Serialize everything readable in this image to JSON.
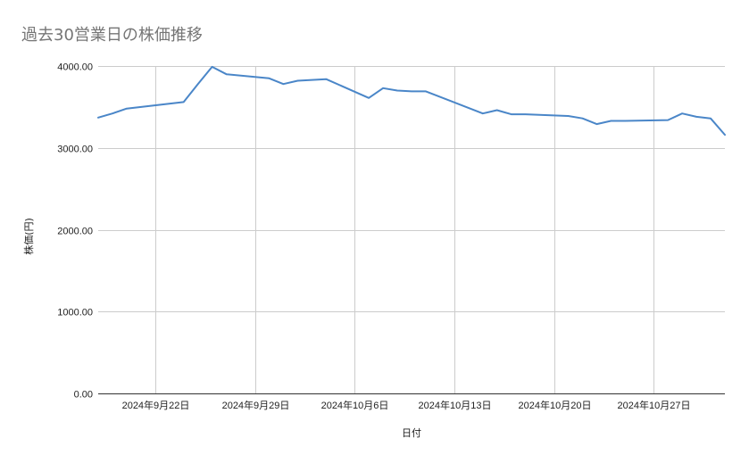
{
  "chart_data": {
    "type": "line",
    "title": "過去30営業日の株価推移",
    "xlabel": "日付",
    "ylabel": "株価(円)",
    "ylim": [
      0,
      4000
    ],
    "yticks": [
      0,
      1000,
      2000,
      3000,
      4000
    ],
    "ytick_labels": [
      "0.00",
      "1000.00",
      "2000.00",
      "3000.00",
      "4000.00"
    ],
    "xlim": [
      "2024-09-18",
      "2024-11-01"
    ],
    "xticks": [
      "2024-09-22",
      "2024-09-29",
      "2024-10-06",
      "2024-10-13",
      "2024-10-20",
      "2024-10-27"
    ],
    "xtick_labels": [
      "2024年9月22日",
      "2024年9月29日",
      "2024年10月6日",
      "2024年10月13日",
      "2024年10月20日",
      "2024年10月27日"
    ],
    "grid": true,
    "legend": "none",
    "color": "#4a86c8",
    "series": [
      {
        "x": [
          "2024-09-18",
          "2024-09-19",
          "2024-09-20",
          "2024-09-24",
          "2024-09-25",
          "2024-09-26",
          "2024-09-27",
          "2024-09-30",
          "2024-10-01",
          "2024-10-02",
          "2024-10-03",
          "2024-10-04",
          "2024-10-07",
          "2024-10-08",
          "2024-10-09",
          "2024-10-10",
          "2024-10-11",
          "2024-10-15",
          "2024-10-16",
          "2024-10-17",
          "2024-10-18",
          "2024-10-21",
          "2024-10-22",
          "2024-10-23",
          "2024-10-24",
          "2024-10-25",
          "2024-10-28",
          "2024-10-29",
          "2024-10-30",
          "2024-10-31",
          "2024-11-01"
        ],
        "values": [
          3370,
          3420,
          3480,
          3560,
          3780,
          3990,
          3900,
          3850,
          3780,
          3820,
          3830,
          3840,
          3610,
          3730,
          3700,
          3690,
          3690,
          3420,
          3460,
          3410,
          3410,
          3390,
          3360,
          3290,
          3330,
          3330,
          3340,
          3420,
          3380,
          3360,
          3160
        ]
      }
    ]
  }
}
